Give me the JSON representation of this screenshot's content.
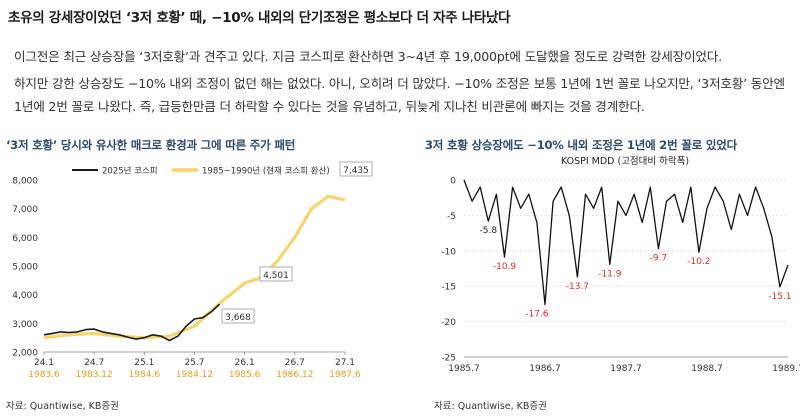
{
  "headline": "초유의 강세장이었던 ‘3저 호황’ 때, −10% 내외의 단기조정은 평소보다 더 자주 나타났다",
  "paragraph1": "이그전은 최근 상승장을 ‘3저호황’과 견주고 있다. 지금 코스피로 환산하면 3~4년 후 19,000pt에 도달했을 정도로 강력한 강세장이었다.",
  "paragraph2": "하지만 강한 상승장도 −10% 내외 조정이 없던 해는 없었다. 아니, 오히려 더 많았다. −10% 조정은 보통 1년에 1번 꼴로 나오지만, ‘3저호황’ 동안엔 1년에 2번 꼴로 나왔다. 즉, 급등한만큼 더 하락할 수 있다는 것을 유념하고, 뒤늦게 지나친 비관론에 빠지는 것을 경계한다.",
  "left_chart": {
    "subtitle": "‘3저 호황’ 당시와 유사한 매크로 환경과 그에 따른 주가 패턴",
    "source": "자료: Quantiwise, KB증권"
  },
  "right_chart": {
    "subtitle": "3저 호황 상승장에도 −10% 내외 조정은 1년에 2번 꼴로 있었다",
    "source": "자료: Quantiwise, KB증권"
  },
  "colors": {
    "kospi_2025": "#1a1a1a",
    "kospi_1985": "#f7d46a",
    "x2_labels": "#e0a020",
    "mdd_line": "#111111",
    "mdd_label_red": "#e02b2b",
    "subtitle_blue": "#2e4a6b"
  },
  "chart_data": [
    {
      "type": "line",
      "title": "",
      "xlabel": "",
      "ylabel": "",
      "ylim": [
        2000,
        8000
      ],
      "yticks": [
        "2,000",
        "3,000",
        "4,000",
        "5,000",
        "6,000",
        "7,000",
        "8,000"
      ],
      "x_ticks_top": [
        "24.1",
        "24.7",
        "25.1",
        "25.7",
        "26.1",
        "26.7",
        "27.1"
      ],
      "x_ticks_bottom": [
        "1983.6",
        "1983.12",
        "1984.6",
        "1984.12",
        "1985.6",
        "1986.12",
        "1987.6"
      ],
      "legend": [
        "2025년 코스피",
        "1985~1990년 (현재 코스피 환산)"
      ],
      "legend_position": "top-center",
      "annotations": [
        "3,668",
        "4,501",
        "7,435"
      ],
      "series": [
        {
          "name": "2025년 코스피",
          "x": [
            "24.1",
            "24.2",
            "24.3",
            "24.4",
            "24.5",
            "24.6",
            "24.7",
            "24.8",
            "24.9",
            "24.10",
            "24.11",
            "24.12",
            "25.1",
            "25.2",
            "25.3",
            "25.4",
            "25.5",
            "25.6",
            "25.7",
            "25.8",
            "25.9",
            "25.10"
          ],
          "values": [
            2600,
            2650,
            2700,
            2680,
            2700,
            2780,
            2800,
            2700,
            2650,
            2600,
            2520,
            2450,
            2500,
            2600,
            2550,
            2400,
            2550,
            2900,
            3150,
            3200,
            3400,
            3668
          ]
        },
        {
          "name": "1985~1990년 (현재 코스피 환산)",
          "x": [
            "24.1",
            "24.4",
            "24.7",
            "24.10",
            "25.1",
            "25.4",
            "25.7",
            "25.10",
            "26.1",
            "26.3",
            "26.5",
            "26.7",
            "26.9",
            "26.11",
            "27.1"
          ],
          "values": [
            2500,
            2600,
            2650,
            2550,
            2500,
            2550,
            2900,
            3700,
            4400,
            4600,
            5200,
            6000,
            7000,
            7435,
            7300
          ]
        }
      ]
    },
    {
      "type": "line",
      "title": "KOSPI MDD (고점대비 하락폭)",
      "xlabel": "",
      "ylabel": "",
      "ylim": [
        -25,
        0
      ],
      "yticks": [
        "0",
        "-5",
        "-10",
        "-15",
        "-20",
        "-25"
      ],
      "xticks": [
        "1985.7",
        "1986.7",
        "1987.7",
        "1988.7",
        "1989.7"
      ],
      "grid": true,
      "annotations": [
        "-5.8",
        "-10.9",
        "-17.6",
        "-13.7",
        "-11.9",
        "-9.7",
        "-10.2",
        "-15.1"
      ],
      "series": [
        {
          "name": "",
          "x": [
            1985.6,
            1985.7,
            1985.8,
            1985.9,
            1986.0,
            1986.1,
            1986.2,
            1986.3,
            1986.4,
            1986.5,
            1986.6,
            1986.7,
            1986.8,
            1986.9,
            1987.0,
            1987.1,
            1987.2,
            1987.3,
            1987.4,
            1987.5,
            1987.6,
            1987.7,
            1987.8,
            1987.9,
            1988.0,
            1988.1,
            1988.2,
            1988.3,
            1988.4,
            1988.5,
            1988.6,
            1988.7,
            1988.8,
            1988.9,
            1989.0,
            1989.1,
            1989.2,
            1989.3,
            1989.4,
            1989.5,
            1989.6
          ],
          "values": [
            0,
            -3,
            -1,
            -5.8,
            -2,
            -10.9,
            -1,
            -4,
            -2,
            -6,
            -17.6,
            -3,
            -1,
            -5,
            -13.7,
            -2,
            -4,
            -1,
            -11.9,
            -3,
            -5,
            -2,
            -6,
            -1,
            -9.7,
            -3,
            -2,
            -6,
            -1,
            -10.2,
            -4,
            -1,
            -3,
            -7,
            -2,
            -5,
            -1,
            -4,
            -8,
            -15.1,
            -12
          ]
        }
      ]
    }
  ]
}
